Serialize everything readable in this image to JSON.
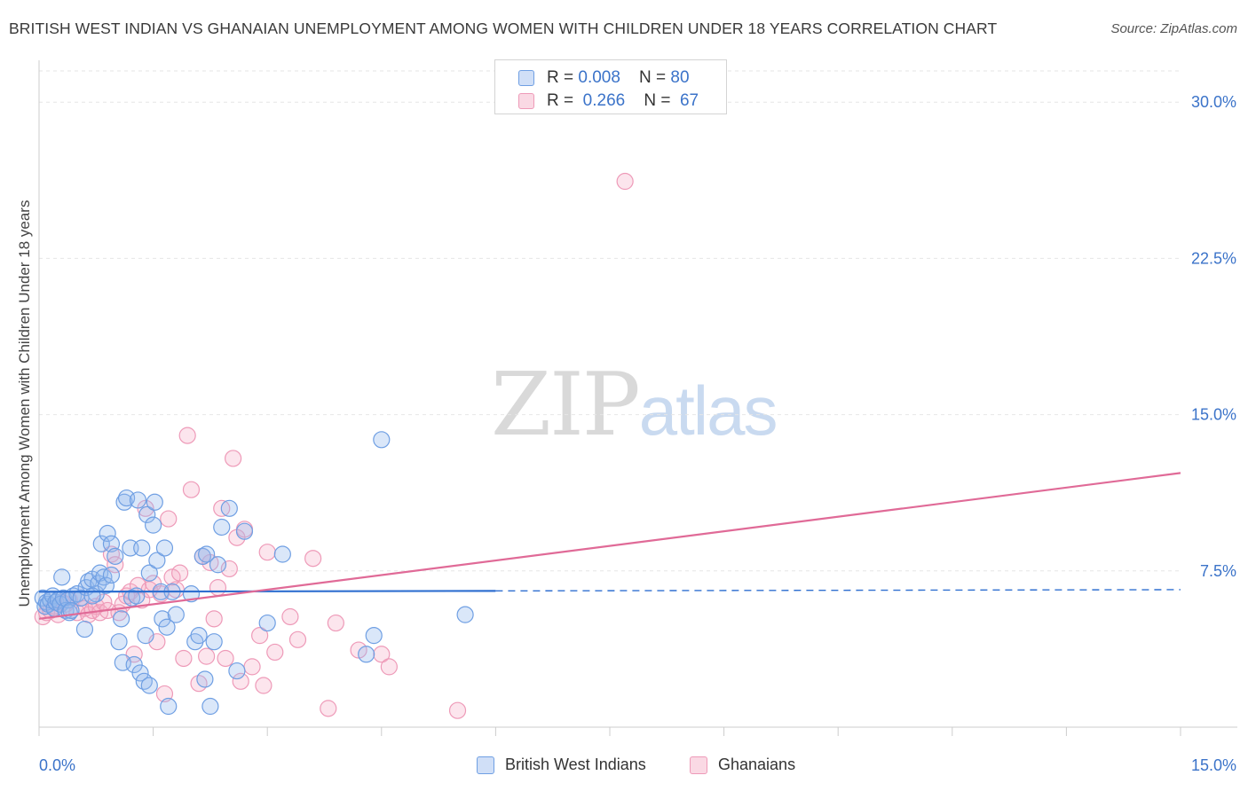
{
  "header": {
    "title": "BRITISH WEST INDIAN VS GHANAIAN UNEMPLOYMENT AMONG WOMEN WITH CHILDREN UNDER 18 YEARS CORRELATION CHART",
    "source": "Source: ZipAtlas.com"
  },
  "watermark": {
    "zip": "ZIP",
    "atlas": "atlas"
  },
  "legend_top": [
    {
      "r_label": "R = ",
      "r_value": "0.008",
      "n_label": "N = ",
      "n_value": "80"
    },
    {
      "r_label": "R = ",
      "r_value": "0.266",
      "n_label": "N = ",
      "n_value": "67"
    }
  ],
  "colors": {
    "blue_fill": "rgba(150,185,238,0.35)",
    "blue_stroke": "#6f9fe3",
    "blue_line": "#2f6fd0",
    "pink_fill": "rgba(244,170,196,0.30)",
    "pink_stroke": "#ee9ab8",
    "pink_line": "#e06a97",
    "axis_text": "#3b73c9",
    "grid": "#e6e6e6"
  },
  "chart_data": {
    "type": "scatter",
    "title": "BRITISH WEST INDIAN VS GHANAIAN UNEMPLOYMENT AMONG WOMEN WITH CHILDREN UNDER 18 YEARS CORRELATION CHART",
    "xlabel": "",
    "ylabel": "Unemployment Among Women with Children Under 18 years",
    "xlim": [
      0,
      15
    ],
    "ylim": [
      0,
      31.5
    ],
    "x_tick_labels": [
      "0.0%",
      "15.0%"
    ],
    "y_ticks": [
      7.5,
      15,
      22.5,
      30
    ],
    "y_tick_labels": [
      "7.5%",
      "15.0%",
      "22.5%",
      "30.0%"
    ],
    "grid": true,
    "legend_position": "bottom",
    "series": [
      {
        "name": "British West Indians",
        "R": 0.008,
        "N": 80,
        "trend": {
          "x_start": 0,
          "x_end": 15,
          "y_start": 6.5,
          "y_end": 6.6,
          "solid_until_x": 6
        },
        "points": [
          [
            0.05,
            6.2
          ],
          [
            0.08,
            5.8
          ],
          [
            0.1,
            6.0
          ],
          [
            0.12,
            5.9
          ],
          [
            0.15,
            6.1
          ],
          [
            0.18,
            6.3
          ],
          [
            0.2,
            5.7
          ],
          [
            0.22,
            6.0
          ],
          [
            0.25,
            6.1
          ],
          [
            0.28,
            5.9
          ],
          [
            0.3,
            7.2
          ],
          [
            0.32,
            6.2
          ],
          [
            0.35,
            5.6
          ],
          [
            0.38,
            6.1
          ],
          [
            0.4,
            5.5
          ],
          [
            0.45,
            6.3
          ],
          [
            0.5,
            6.4
          ],
          [
            0.55,
            6.2
          ],
          [
            0.6,
            4.7
          ],
          [
            0.62,
            6.7
          ],
          [
            0.65,
            7.0
          ],
          [
            0.7,
            7.1
          ],
          [
            0.75,
            6.4
          ],
          [
            0.78,
            6.9
          ],
          [
            0.8,
            7.4
          ],
          [
            0.82,
            8.8
          ],
          [
            0.85,
            7.2
          ],
          [
            0.88,
            6.8
          ],
          [
            0.9,
            9.3
          ],
          [
            0.95,
            8.8
          ],
          [
            1.0,
            8.2
          ],
          [
            1.05,
            4.1
          ],
          [
            1.08,
            5.2
          ],
          [
            1.1,
            3.1
          ],
          [
            1.12,
            10.8
          ],
          [
            1.15,
            11.0
          ],
          [
            1.2,
            8.6
          ],
          [
            1.22,
            6.2
          ],
          [
            1.25,
            3.0
          ],
          [
            1.28,
            6.3
          ],
          [
            1.3,
            10.9
          ],
          [
            1.33,
            2.6
          ],
          [
            1.35,
            8.6
          ],
          [
            1.38,
            2.2
          ],
          [
            1.4,
            4.4
          ],
          [
            1.42,
            10.2
          ],
          [
            1.45,
            7.4
          ],
          [
            1.5,
            9.7
          ],
          [
            1.52,
            10.8
          ],
          [
            1.55,
            8.0
          ],
          [
            1.6,
            6.5
          ],
          [
            1.62,
            5.2
          ],
          [
            1.65,
            8.6
          ],
          [
            1.68,
            4.8
          ],
          [
            1.7,
            1.0
          ],
          [
            1.75,
            6.5
          ],
          [
            1.8,
            5.4
          ],
          [
            2.0,
            6.4
          ],
          [
            2.05,
            4.1
          ],
          [
            2.1,
            4.4
          ],
          [
            2.15,
            8.2
          ],
          [
            2.18,
            2.3
          ],
          [
            2.2,
            8.3
          ],
          [
            2.25,
            1.0
          ],
          [
            2.3,
            4.1
          ],
          [
            2.35,
            7.8
          ],
          [
            2.4,
            9.6
          ],
          [
            2.5,
            10.5
          ],
          [
            2.6,
            2.7
          ],
          [
            2.7,
            9.4
          ],
          [
            3.0,
            5.0
          ],
          [
            3.2,
            8.3
          ],
          [
            4.3,
            3.5
          ],
          [
            4.4,
            4.4
          ],
          [
            4.5,
            13.8
          ],
          [
            5.6,
            5.4
          ],
          [
            1.45,
            2.0
          ],
          [
            0.95,
            7.3
          ],
          [
            0.7,
            6.3
          ],
          [
            0.42,
            5.6
          ]
        ]
      },
      {
        "name": "Ghanaians",
        "R": 0.266,
        "N": 67,
        "trend": {
          "x_start": 0,
          "x_end": 15,
          "y_start": 5.2,
          "y_end": 12.2
        },
        "points": [
          [
            0.05,
            5.3
          ],
          [
            0.1,
            5.5
          ],
          [
            0.15,
            5.6
          ],
          [
            0.2,
            5.8
          ],
          [
            0.25,
            5.4
          ],
          [
            0.3,
            6.0
          ],
          [
            0.35,
            5.9
          ],
          [
            0.4,
            6.1
          ],
          [
            0.5,
            5.5
          ],
          [
            0.55,
            6.2
          ],
          [
            0.6,
            5.7
          ],
          [
            0.65,
            5.4
          ],
          [
            0.7,
            5.6
          ],
          [
            0.75,
            5.8
          ],
          [
            0.8,
            5.5
          ],
          [
            0.85,
            6.0
          ],
          [
            0.9,
            5.6
          ],
          [
            0.95,
            8.3
          ],
          [
            1.0,
            7.8
          ],
          [
            1.05,
            5.5
          ],
          [
            1.1,
            5.9
          ],
          [
            1.15,
            6.3
          ],
          [
            1.2,
            6.5
          ],
          [
            1.25,
            3.5
          ],
          [
            1.3,
            6.8
          ],
          [
            1.35,
            6.1
          ],
          [
            1.4,
            10.5
          ],
          [
            1.45,
            6.6
          ],
          [
            1.5,
            6.9
          ],
          [
            1.55,
            4.1
          ],
          [
            1.6,
            6.4
          ],
          [
            1.65,
            1.6
          ],
          [
            1.7,
            10.0
          ],
          [
            1.75,
            7.2
          ],
          [
            1.8,
            6.6
          ],
          [
            1.85,
            7.4
          ],
          [
            1.9,
            3.3
          ],
          [
            1.95,
            14.0
          ],
          [
            2.0,
            11.4
          ],
          [
            2.1,
            2.1
          ],
          [
            2.15,
            8.2
          ],
          [
            2.2,
            3.4
          ],
          [
            2.25,
            7.9
          ],
          [
            2.3,
            5.2
          ],
          [
            2.35,
            6.7
          ],
          [
            2.4,
            10.5
          ],
          [
            2.45,
            3.3
          ],
          [
            2.5,
            7.6
          ],
          [
            2.55,
            12.9
          ],
          [
            2.6,
            9.1
          ],
          [
            2.65,
            2.2
          ],
          [
            2.7,
            9.5
          ],
          [
            2.8,
            2.9
          ],
          [
            2.9,
            4.4
          ],
          [
            2.95,
            2.0
          ],
          [
            3.0,
            8.4
          ],
          [
            3.1,
            3.6
          ],
          [
            3.3,
            5.3
          ],
          [
            3.4,
            4.2
          ],
          [
            3.6,
            8.1
          ],
          [
            3.8,
            0.9
          ],
          [
            3.9,
            5.0
          ],
          [
            4.2,
            3.7
          ],
          [
            4.5,
            3.5
          ],
          [
            4.6,
            2.9
          ],
          [
            5.5,
            0.8
          ],
          [
            7.7,
            26.2
          ]
        ]
      }
    ]
  }
}
